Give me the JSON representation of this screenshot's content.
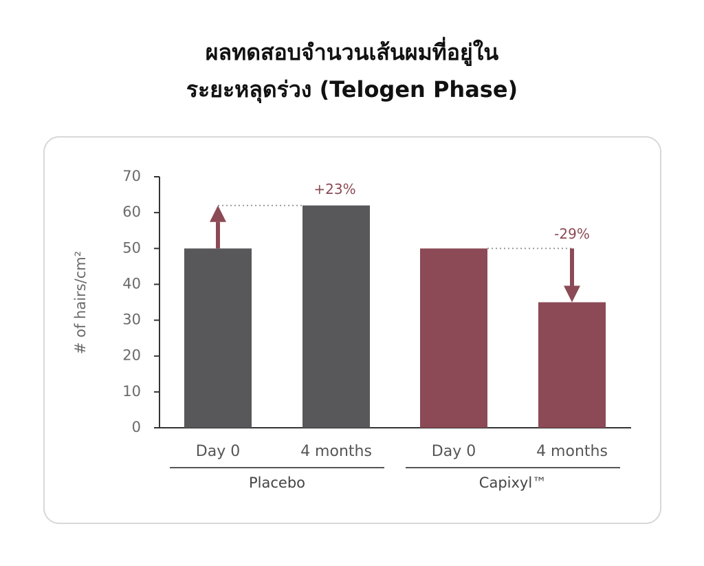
{
  "chart_data": {
    "type": "bar",
    "title": [
      "ผลทดสอบจำนวนเส้นผมที่อยู่ใน",
      "ระยะหลุดร่วง (Telogen Phase)"
    ],
    "y_label": "# of hairs/cm²",
    "ylim": [
      0,
      70
    ],
    "yticks": [
      0,
      10,
      20,
      30,
      40,
      50,
      60,
      70
    ],
    "arrow_color": "#8b4a55",
    "groups": [
      {
        "name": "Placebo",
        "color": "#58585a",
        "categories": [
          "Day 0",
          "4 months"
        ],
        "values": [
          50,
          62
        ],
        "annotation": "+23%"
      },
      {
        "name": "Capixyl™",
        "color": "#8b4a55",
        "categories": [
          "Day 0",
          "4 months"
        ],
        "values": [
          50,
          35
        ],
        "annotation": "-29%"
      }
    ]
  }
}
